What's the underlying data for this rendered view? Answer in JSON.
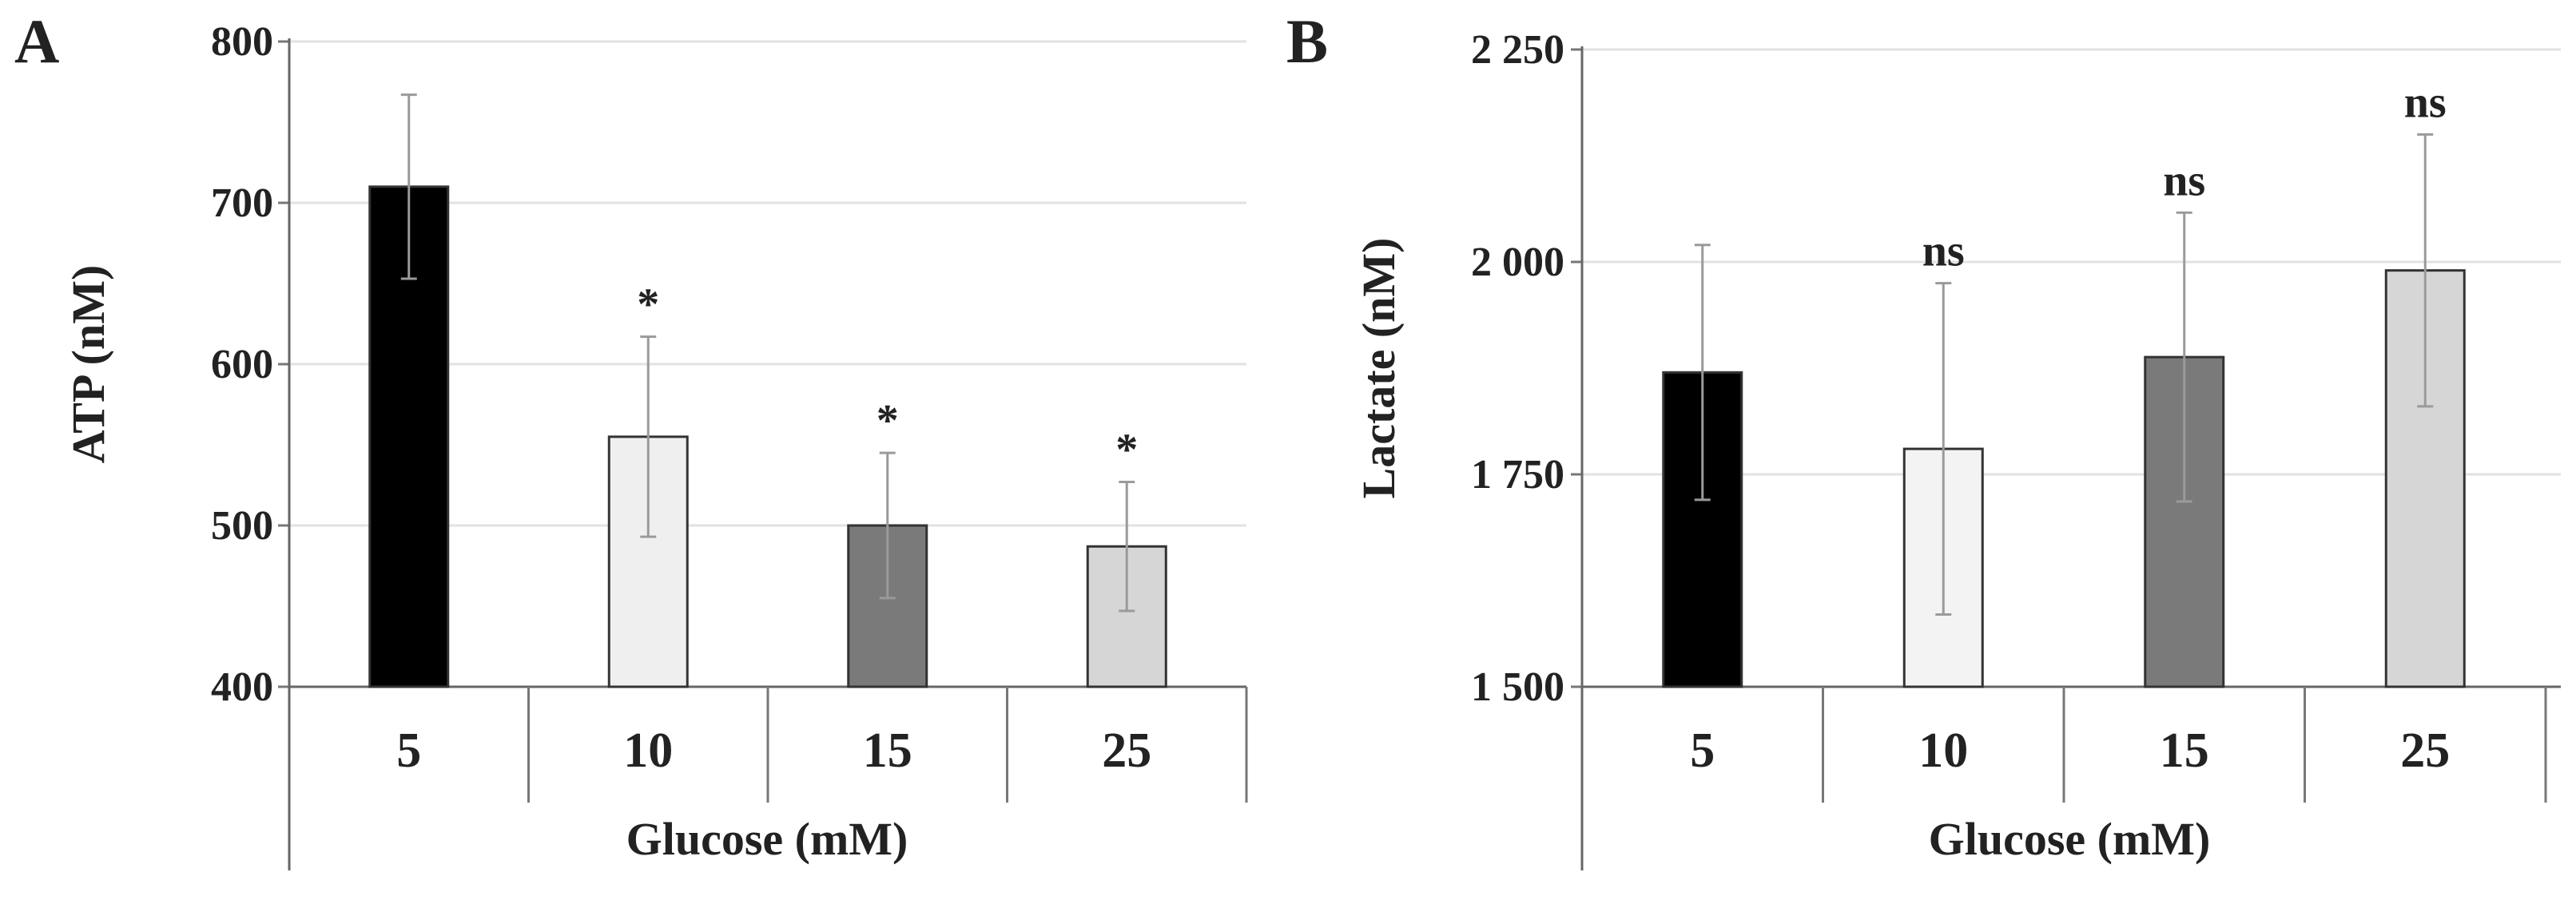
{
  "chart_data": [
    {
      "type": "bar",
      "panel_label": "A",
      "categories": [
        "5",
        "10",
        "15",
        "25"
      ],
      "values": [
        710,
        555,
        500,
        487
      ],
      "error": [
        57,
        62,
        45,
        40
      ],
      "annotations": [
        "",
        "*",
        "*",
        "*"
      ],
      "colors": [
        "#000000",
        "#efefef",
        "#7a7a7a",
        "#d6d6d6"
      ],
      "yticks": [
        "400",
        "500",
        "600",
        "700",
        "800"
      ],
      "ylim": [
        400,
        800
      ],
      "xlabel": "Glucose (mM)",
      "ylabel": "ATP (nM)",
      "grid": true
    },
    {
      "type": "bar",
      "panel_label": "B",
      "categories": [
        "5",
        "10",
        "15",
        "25"
      ],
      "values": [
        1870,
        1780,
        1888,
        1990
      ],
      "error": [
        150,
        195,
        170,
        160
      ],
      "annotations": [
        "",
        "ns",
        "ns",
        "ns"
      ],
      "colors": [
        "#000000",
        "#f3f3f3",
        "#7a7a7a",
        "#d6d6d6"
      ],
      "yticks": [
        "1 500",
        "1 750",
        "2 000",
        "2 250"
      ],
      "ylim": [
        1500,
        2250
      ],
      "xlabel": "Glucose (mM)",
      "ylabel": "Lactate (nM)",
      "grid": true
    }
  ]
}
